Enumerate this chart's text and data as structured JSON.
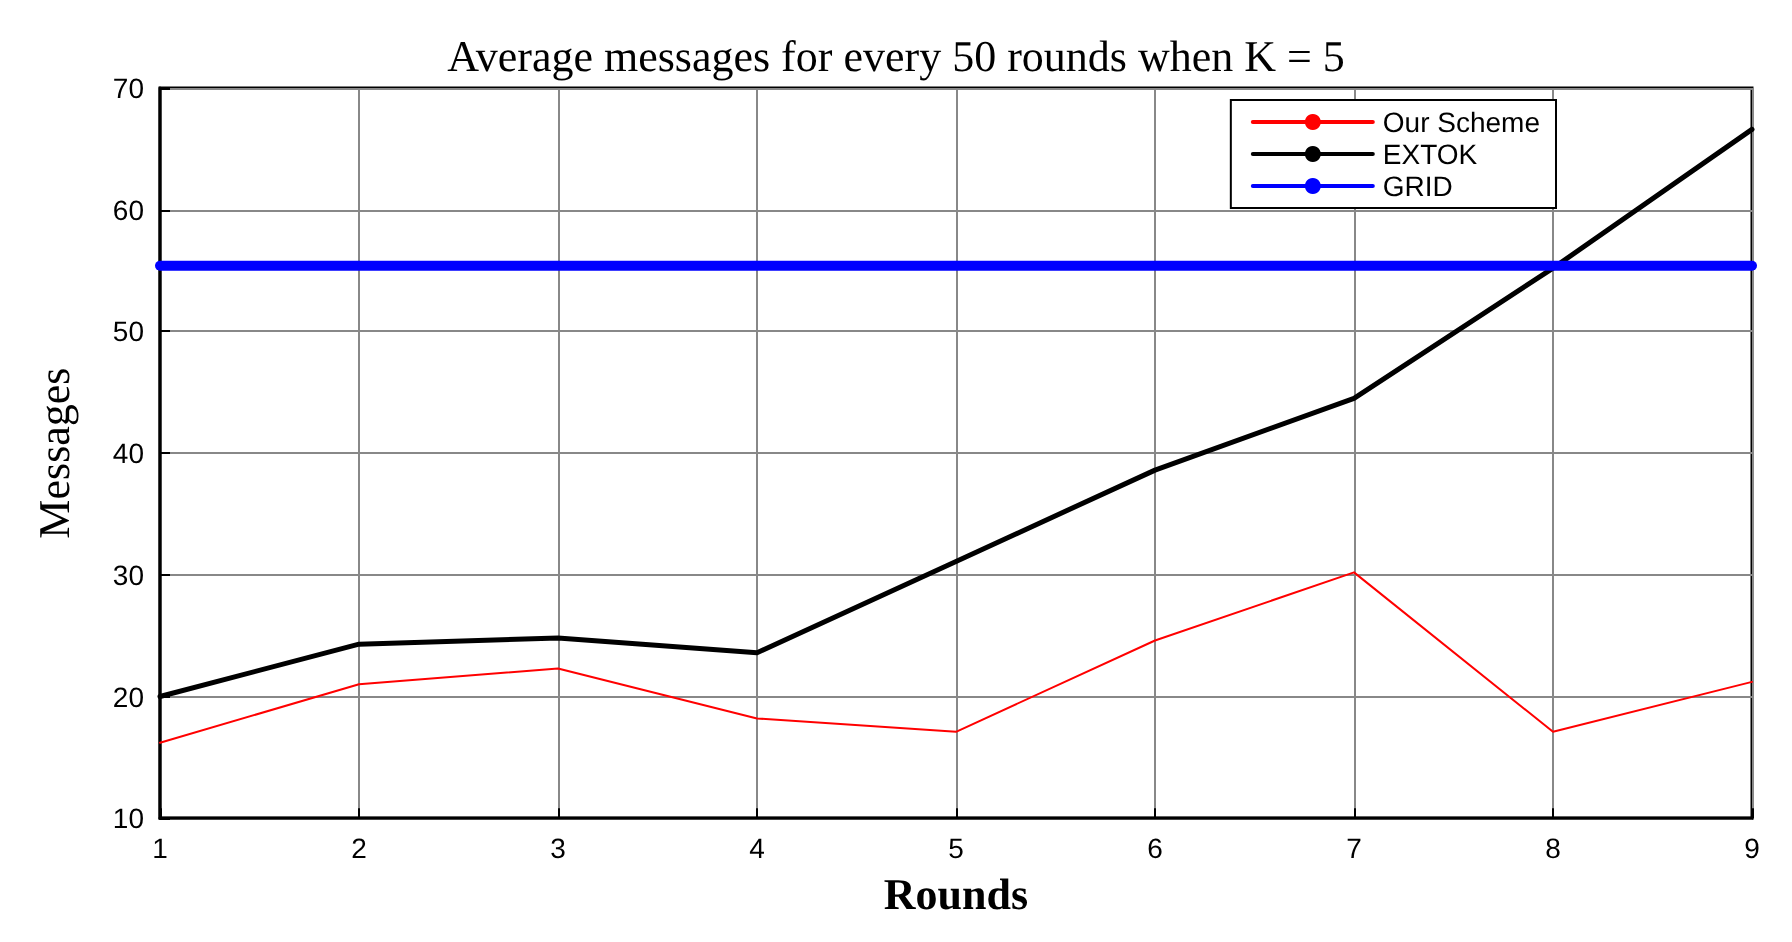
{
  "chart_data": {
    "type": "line",
    "title": "Average messages for every 50 rounds when K = 5",
    "xlabel": "Rounds",
    "ylabel": "Messages",
    "x": [
      1,
      2,
      3,
      4,
      5,
      6,
      7,
      8,
      9
    ],
    "series": [
      {
        "name": "Our Scheme",
        "color": "#ff0000",
        "values": [
          16.2,
          21.0,
          22.3,
          18.2,
          17.1,
          24.6,
          30.2,
          17.1,
          21.2
        ]
      },
      {
        "name": "EXTOK",
        "color": "#000000",
        "values": [
          20.0,
          24.3,
          24.8,
          23.6,
          31.1,
          38.6,
          44.5,
          55.2,
          66.6
        ]
      },
      {
        "name": "GRID",
        "color": "#0000ff",
        "values": [
          55.4,
          55.4,
          55.4,
          55.4,
          55.4,
          55.4,
          55.4,
          55.4,
          55.4
        ]
      }
    ],
    "xlim": [
      1,
      9
    ],
    "xticks": [
      1,
      2,
      3,
      4,
      5,
      6,
      7,
      8,
      9
    ],
    "ylim": [
      10,
      70
    ],
    "yticks": [
      10,
      20,
      30,
      40,
      50,
      60,
      70
    ],
    "grid": true,
    "legend": "top right",
    "marker": "none",
    "line_style": "solid"
  }
}
